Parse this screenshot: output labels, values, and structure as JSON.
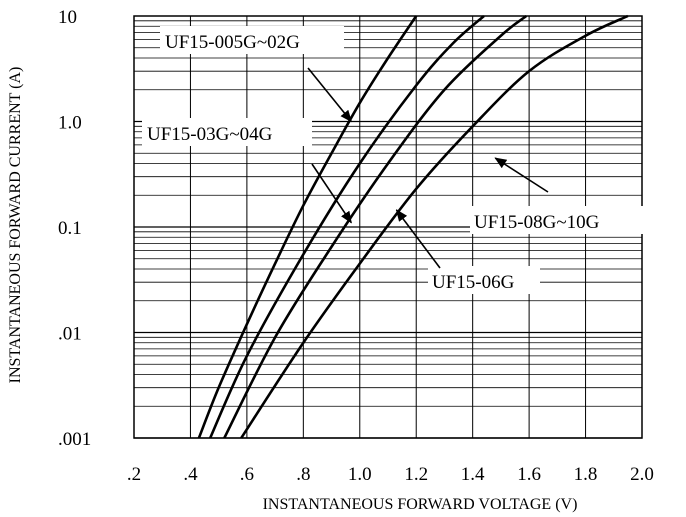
{
  "chart_data": {
    "type": "line",
    "title": "",
    "xlabel": "INSTANTANEOUS FORWARD VOLTAGE (V)",
    "ylabel": "INSTANTANEOUS FORWARD CURRENT (A)",
    "xscale": "linear",
    "yscale": "log",
    "xlim": [
      0.2,
      2.0
    ],
    "ylim": [
      0.001,
      10
    ],
    "x_ticks": [
      ".2",
      ".4",
      ".6",
      ".8",
      "1.0",
      "1.2",
      "1.4",
      "1.6",
      "1.8",
      "2.0"
    ],
    "y_ticks": [
      {
        "value": 10,
        "label": "10"
      },
      {
        "value": 1,
        "label": "1.0"
      },
      {
        "value": 0.1,
        "label": "0.1"
      },
      {
        "value": 0.01,
        "label": ".01"
      },
      {
        "value": 0.001,
        "label": ".001"
      }
    ],
    "grid": true,
    "legend": "none",
    "series": [
      {
        "points": [
          [
            0.43,
            0.001
          ],
          [
            0.5,
            0.003
          ],
          [
            0.6,
            0.012
          ],
          [
            0.7,
            0.045
          ],
          [
            0.8,
            0.16
          ],
          [
            0.9,
            0.5
          ],
          [
            1.0,
            1.5
          ],
          [
            1.1,
            4.0
          ],
          [
            1.2,
            10
          ]
        ]
      },
      {
        "points": [
          [
            0.47,
            0.001
          ],
          [
            0.6,
            0.006
          ],
          [
            0.8,
            0.055
          ],
          [
            1.0,
            0.4
          ],
          [
            1.2,
            2.2
          ],
          [
            1.33,
            5.5
          ],
          [
            1.44,
            10
          ]
        ]
      },
      {
        "points": [
          [
            0.52,
            0.001
          ],
          [
            0.7,
            0.009
          ],
          [
            0.9,
            0.065
          ],
          [
            1.1,
            0.4
          ],
          [
            1.3,
            2.0
          ],
          [
            1.5,
            6.5
          ],
          [
            1.59,
            10
          ]
        ]
      },
      {
        "points": [
          [
            0.58,
            0.001
          ],
          [
            0.8,
            0.008
          ],
          [
            1.0,
            0.045
          ],
          [
            1.2,
            0.23
          ],
          [
            1.4,
            0.9
          ],
          [
            1.6,
            3.0
          ],
          [
            1.8,
            6.5
          ],
          [
            1.95,
            10
          ]
        ]
      }
    ],
    "annotations": [
      {
        "label": "UF15-005G~02G",
        "x": 0.97,
        "y": 1.0
      },
      {
        "label": "UF15-03G~04G",
        "x": 0.97,
        "y": 0.11
      },
      {
        "label": "UF15-06G",
        "x": 1.13,
        "y": 0.145
      },
      {
        "label": "UF15-08G~10G",
        "x": 1.48,
        "y": 0.45
      }
    ]
  }
}
